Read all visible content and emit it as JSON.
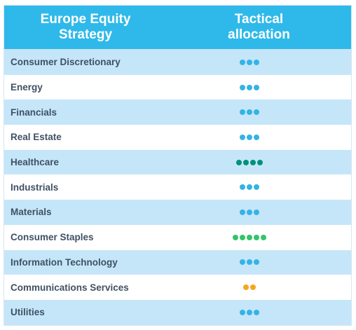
{
  "header": {
    "col1_line1": "Europe Equity",
    "col1_line2": "Strategy",
    "col2_line1": "Tactical",
    "col2_line2": "allocation"
  },
  "colors": {
    "header_bg": "#2fb9ea",
    "row_alt_bg": "#c5e6f9",
    "dot_blue": "#33b3e6",
    "dot_teal": "#00917a",
    "dot_green": "#33c46b",
    "dot_orange": "#f5a623"
  },
  "rows": [
    {
      "label": "Consumer Discretionary",
      "dots": 3,
      "color": "#33b3e6"
    },
    {
      "label": "Energy",
      "dots": 3,
      "color": "#33b3e6"
    },
    {
      "label": "Financials",
      "dots": 3,
      "color": "#33b3e6"
    },
    {
      "label": "Real Estate",
      "dots": 3,
      "color": "#33b3e6"
    },
    {
      "label": "Healthcare",
      "dots": 4,
      "color": "#00917a"
    },
    {
      "label": "Industrials",
      "dots": 3,
      "color": "#33b3e6"
    },
    {
      "label": "Materials",
      "dots": 3,
      "color": "#33b3e6"
    },
    {
      "label": "Consumer Staples",
      "dots": 5,
      "color": "#33c46b"
    },
    {
      "label": "Information Technology",
      "dots": 3,
      "color": "#33b3e6"
    },
    {
      "label": "Communications Services",
      "dots": 2,
      "color": "#f5a623"
    },
    {
      "label": "Utilities",
      "dots": 3,
      "color": "#33b3e6"
    }
  ]
}
